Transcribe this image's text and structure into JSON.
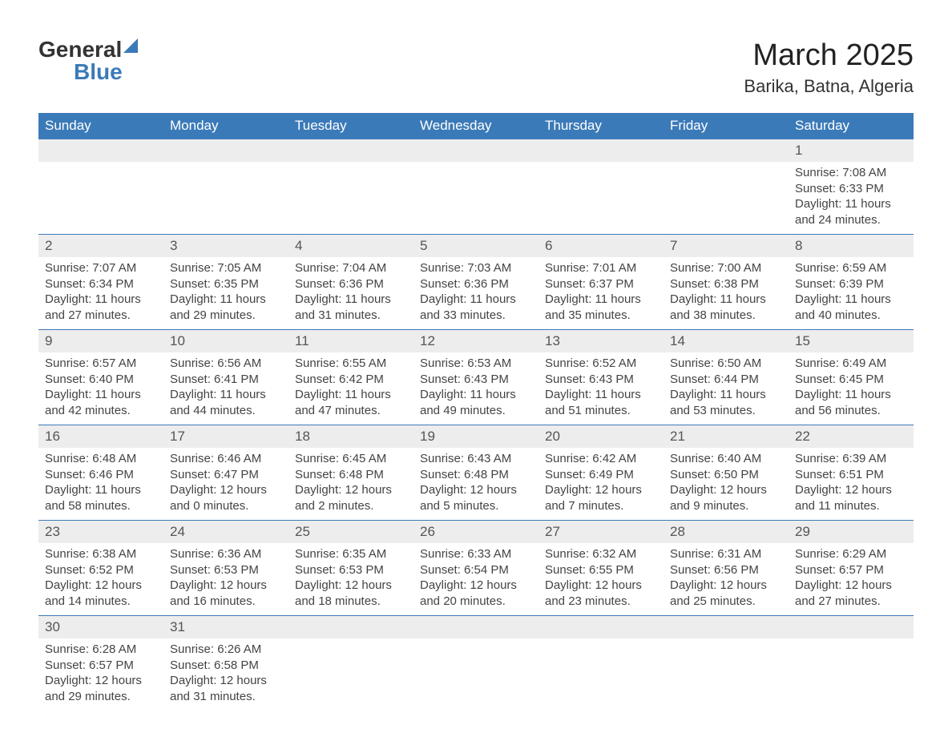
{
  "logo": {
    "text1": "General",
    "text2": "Blue"
  },
  "title": "March 2025",
  "location": "Barika, Batna, Algeria",
  "colors": {
    "header_bg": "#3b7ab8",
    "row_bg": "#ededed",
    "text": "#444444"
  },
  "layout": {
    "cell_fontsize": 15,
    "daynum_fontsize": 17,
    "title_fontsize": 38
  },
  "day_headers": [
    "Sunday",
    "Monday",
    "Tuesday",
    "Wednesday",
    "Thursday",
    "Friday",
    "Saturday"
  ],
  "weeks": [
    [
      null,
      null,
      null,
      null,
      null,
      null,
      {
        "n": "1",
        "sr": "Sunrise: 7:08 AM",
        "ss": "Sunset: 6:33 PM",
        "dl": "Daylight: 11 hours and 24 minutes."
      }
    ],
    [
      {
        "n": "2",
        "sr": "Sunrise: 7:07 AM",
        "ss": "Sunset: 6:34 PM",
        "dl": "Daylight: 11 hours and 27 minutes."
      },
      {
        "n": "3",
        "sr": "Sunrise: 7:05 AM",
        "ss": "Sunset: 6:35 PM",
        "dl": "Daylight: 11 hours and 29 minutes."
      },
      {
        "n": "4",
        "sr": "Sunrise: 7:04 AM",
        "ss": "Sunset: 6:36 PM",
        "dl": "Daylight: 11 hours and 31 minutes."
      },
      {
        "n": "5",
        "sr": "Sunrise: 7:03 AM",
        "ss": "Sunset: 6:36 PM",
        "dl": "Daylight: 11 hours and 33 minutes."
      },
      {
        "n": "6",
        "sr": "Sunrise: 7:01 AM",
        "ss": "Sunset: 6:37 PM",
        "dl": "Daylight: 11 hours and 35 minutes."
      },
      {
        "n": "7",
        "sr": "Sunrise: 7:00 AM",
        "ss": "Sunset: 6:38 PM",
        "dl": "Daylight: 11 hours and 38 minutes."
      },
      {
        "n": "8",
        "sr": "Sunrise: 6:59 AM",
        "ss": "Sunset: 6:39 PM",
        "dl": "Daylight: 11 hours and 40 minutes."
      }
    ],
    [
      {
        "n": "9",
        "sr": "Sunrise: 6:57 AM",
        "ss": "Sunset: 6:40 PM",
        "dl": "Daylight: 11 hours and 42 minutes."
      },
      {
        "n": "10",
        "sr": "Sunrise: 6:56 AM",
        "ss": "Sunset: 6:41 PM",
        "dl": "Daylight: 11 hours and 44 minutes."
      },
      {
        "n": "11",
        "sr": "Sunrise: 6:55 AM",
        "ss": "Sunset: 6:42 PM",
        "dl": "Daylight: 11 hours and 47 minutes."
      },
      {
        "n": "12",
        "sr": "Sunrise: 6:53 AM",
        "ss": "Sunset: 6:43 PM",
        "dl": "Daylight: 11 hours and 49 minutes."
      },
      {
        "n": "13",
        "sr": "Sunrise: 6:52 AM",
        "ss": "Sunset: 6:43 PM",
        "dl": "Daylight: 11 hours and 51 minutes."
      },
      {
        "n": "14",
        "sr": "Sunrise: 6:50 AM",
        "ss": "Sunset: 6:44 PM",
        "dl": "Daylight: 11 hours and 53 minutes."
      },
      {
        "n": "15",
        "sr": "Sunrise: 6:49 AM",
        "ss": "Sunset: 6:45 PM",
        "dl": "Daylight: 11 hours and 56 minutes."
      }
    ],
    [
      {
        "n": "16",
        "sr": "Sunrise: 6:48 AM",
        "ss": "Sunset: 6:46 PM",
        "dl": "Daylight: 11 hours and 58 minutes."
      },
      {
        "n": "17",
        "sr": "Sunrise: 6:46 AM",
        "ss": "Sunset: 6:47 PM",
        "dl": "Daylight: 12 hours and 0 minutes."
      },
      {
        "n": "18",
        "sr": "Sunrise: 6:45 AM",
        "ss": "Sunset: 6:48 PM",
        "dl": "Daylight: 12 hours and 2 minutes."
      },
      {
        "n": "19",
        "sr": "Sunrise: 6:43 AM",
        "ss": "Sunset: 6:48 PM",
        "dl": "Daylight: 12 hours and 5 minutes."
      },
      {
        "n": "20",
        "sr": "Sunrise: 6:42 AM",
        "ss": "Sunset: 6:49 PM",
        "dl": "Daylight: 12 hours and 7 minutes."
      },
      {
        "n": "21",
        "sr": "Sunrise: 6:40 AM",
        "ss": "Sunset: 6:50 PM",
        "dl": "Daylight: 12 hours and 9 minutes."
      },
      {
        "n": "22",
        "sr": "Sunrise: 6:39 AM",
        "ss": "Sunset: 6:51 PM",
        "dl": "Daylight: 12 hours and 11 minutes."
      }
    ],
    [
      {
        "n": "23",
        "sr": "Sunrise: 6:38 AM",
        "ss": "Sunset: 6:52 PM",
        "dl": "Daylight: 12 hours and 14 minutes."
      },
      {
        "n": "24",
        "sr": "Sunrise: 6:36 AM",
        "ss": "Sunset: 6:53 PM",
        "dl": "Daylight: 12 hours and 16 minutes."
      },
      {
        "n": "25",
        "sr": "Sunrise: 6:35 AM",
        "ss": "Sunset: 6:53 PM",
        "dl": "Daylight: 12 hours and 18 minutes."
      },
      {
        "n": "26",
        "sr": "Sunrise: 6:33 AM",
        "ss": "Sunset: 6:54 PM",
        "dl": "Daylight: 12 hours and 20 minutes."
      },
      {
        "n": "27",
        "sr": "Sunrise: 6:32 AM",
        "ss": "Sunset: 6:55 PM",
        "dl": "Daylight: 12 hours and 23 minutes."
      },
      {
        "n": "28",
        "sr": "Sunrise: 6:31 AM",
        "ss": "Sunset: 6:56 PM",
        "dl": "Daylight: 12 hours and 25 minutes."
      },
      {
        "n": "29",
        "sr": "Sunrise: 6:29 AM",
        "ss": "Sunset: 6:57 PM",
        "dl": "Daylight: 12 hours and 27 minutes."
      }
    ],
    [
      {
        "n": "30",
        "sr": "Sunrise: 6:28 AM",
        "ss": "Sunset: 6:57 PM",
        "dl": "Daylight: 12 hours and 29 minutes."
      },
      {
        "n": "31",
        "sr": "Sunrise: 6:26 AM",
        "ss": "Sunset: 6:58 PM",
        "dl": "Daylight: 12 hours and 31 minutes."
      },
      null,
      null,
      null,
      null,
      null
    ]
  ]
}
